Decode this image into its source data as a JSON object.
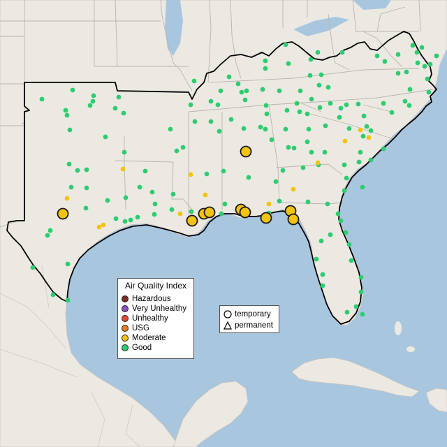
{
  "legend": {
    "title": "Air Quality Index",
    "categories": [
      {
        "label": "Hazardous",
        "color": "#7e2a22"
      },
      {
        "label": "Very Unhealthy",
        "color": "#8f4fc0"
      },
      {
        "label": "Unhealthy",
        "color": "#e34a33"
      },
      {
        "label": "USG",
        "color": "#e67e22"
      },
      {
        "label": "Moderate",
        "color": "#f2c40f"
      },
      {
        "label": "Good",
        "color": "#2ecc71"
      }
    ]
  },
  "shape_legend": {
    "temporary": "temporary",
    "permanent": "permanent"
  },
  "colors": {
    "ocean": "#a9c6df",
    "land": "#ece9e3",
    "borders": "#b9b5ae",
    "outline": "#000000"
  }
}
